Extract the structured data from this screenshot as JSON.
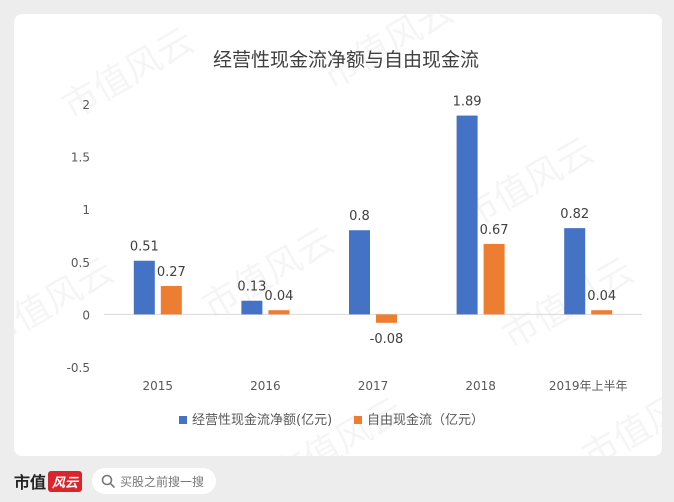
{
  "chart_data": {
    "type": "bar",
    "title": "经营性现金流净额与自由现金流",
    "categories": [
      "2015",
      "2016",
      "2017",
      "2018",
      "2019年上半年"
    ],
    "series": [
      {
        "name": "经营性现金流净额(亿元)",
        "color": "#4472c4",
        "values": [
          0.51,
          0.13,
          0.8,
          1.89,
          0.82
        ],
        "labels": [
          "0.51",
          "0.13",
          "0.8",
          "1.89",
          "0.82"
        ]
      },
      {
        "name": "自由现金流（亿元）",
        "color": "#ed7d31",
        "values": [
          0.27,
          0.04,
          -0.08,
          0.67,
          0.04
        ],
        "labels": [
          "0.27",
          "0.04",
          "-0.08",
          "0.67",
          "0.04"
        ]
      }
    ],
    "ylim": [
      -0.5,
      2
    ],
    "yticks": [
      -0.5,
      0,
      0.5,
      1,
      1.5,
      2
    ],
    "ytick_labels": [
      "-0.5",
      "0",
      "0.5",
      "1",
      "1.5",
      "2"
    ],
    "grid": false,
    "legend": "bottom"
  },
  "watermark": "市值风云",
  "footer": {
    "brand_text": "市值",
    "brand_badge": "风云",
    "search_placeholder": "买股之前搜一搜",
    "search_icon": "search-icon"
  }
}
